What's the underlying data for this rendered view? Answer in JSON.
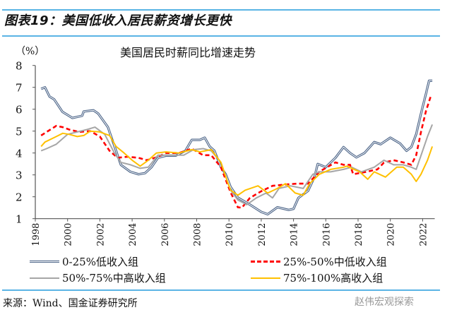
{
  "header": {
    "figure_title": "图表19：美国低收入居民薪资增长更快"
  },
  "footer": {
    "source": "来源：Wind、国金证券研究所",
    "watermark": "赵伟宏观探索"
  },
  "chart_data": {
    "type": "line",
    "title": "美国居民时薪同比增速走势",
    "ylabel": "（%）",
    "xlabel": "",
    "xlim": [
      1998,
      2022.75
    ],
    "ylim": [
      1,
      8
    ],
    "yticks": [
      "1",
      "2",
      "3",
      "4",
      "5",
      "6",
      "7",
      "8"
    ],
    "xticks": [
      "1998",
      "2000",
      "2002",
      "2004",
      "2006",
      "2008",
      "2010",
      "2012",
      "2014",
      "2016",
      "2018",
      "2020",
      "2022"
    ],
    "grid": false,
    "legend_placement": "bottom",
    "series": [
      {
        "name": "0-25%低收入组",
        "color": "#4a6387",
        "style": "double",
        "x": [
          1998.36,
          1998.6,
          1998.88,
          1999.17,
          1999.68,
          2000.3,
          2000.9,
          2001.0,
          2001.6,
          2001.9,
          2002.5,
          2002.9,
          2003.3,
          2003.9,
          2004.4,
          2004.8,
          2005.2,
          2005.6,
          2006.1,
          2006.7,
          2007.3,
          2007.7,
          2008.2,
          2008.5,
          2008.8,
          2009.1,
          2009.5,
          2009.8,
          2010.1,
          2010.55,
          2011.3,
          2012.0,
          2012.4,
          2013.0,
          2013.7,
          2014.0,
          2014.3,
          2014.9,
          2015.3,
          2015.5,
          2016.0,
          2016.6,
          2017.1,
          2017.5,
          2017.9,
          2018.4,
          2019.0,
          2019.4,
          2020.0,
          2020.6,
          2021.0,
          2021.3,
          2021.6,
          2021.9,
          2022.2,
          2022.4,
          2022.6
        ],
        "y": [
          6.93,
          7.0,
          6.58,
          6.45,
          5.88,
          5.6,
          5.7,
          5.9,
          5.95,
          5.8,
          5.18,
          4.32,
          3.46,
          3.14,
          3.03,
          3.08,
          3.35,
          3.78,
          3.88,
          3.88,
          4.1,
          4.6,
          4.6,
          4.7,
          4.3,
          4.1,
          3.35,
          3.03,
          2.45,
          1.96,
          1.64,
          1.31,
          1.2,
          1.52,
          1.4,
          1.45,
          1.95,
          2.27,
          2.9,
          3.5,
          3.35,
          3.78,
          4.27,
          4.0,
          3.8,
          4.0,
          4.5,
          4.4,
          4.7,
          4.44,
          4.1,
          4.27,
          4.86,
          5.8,
          6.69,
          7.3,
          7.3
        ]
      },
      {
        "name": "25%-50%中低收入组",
        "color": "#ff0000",
        "style": "dashed",
        "x": [
          1998.36,
          1998.7,
          1999.3,
          1999.7,
          2000.1,
          2000.7,
          2001.4,
          2002.0,
          2002.6,
          2003.1,
          2003.7,
          2004.4,
          2004.9,
          2005.5,
          2006.1,
          2006.9,
          2007.7,
          2008.4,
          2008.9,
          2009.5,
          2010.1,
          2010.55,
          2010.8,
          2011.3,
          2012.0,
          2012.7,
          2013.4,
          2014.2,
          2014.9,
          2015.6,
          2016.6,
          2017.1,
          2017.5,
          2017.7,
          2018.5,
          2019.2,
          2019.6,
          2020.2,
          2020.8,
          2021.3,
          2021.6,
          2021.9,
          2022.2,
          2022.5
        ],
        "y": [
          4.8,
          4.96,
          5.24,
          5.18,
          5.07,
          4.96,
          5.0,
          4.75,
          4.1,
          3.78,
          3.83,
          3.78,
          3.67,
          3.8,
          4.0,
          4.0,
          4.2,
          3.9,
          3.9,
          3.35,
          2.2,
          1.52,
          1.5,
          1.95,
          2.25,
          2.5,
          2.55,
          2.6,
          2.6,
          3.15,
          3.57,
          3.46,
          3.46,
          3.03,
          3.14,
          3.25,
          3.56,
          3.67,
          3.57,
          3.46,
          3.9,
          4.96,
          5.9,
          6.58
        ]
      },
      {
        "name": "50%-75%中高收入组",
        "color": "#a6a6a6",
        "style": "solid",
        "x": [
          1998.36,
          1998.7,
          1999.3,
          2000.0,
          2000.6,
          2001.2,
          2001.7,
          2002.3,
          2002.9,
          2003.3,
          2003.9,
          2004.5,
          2005.0,
          2005.6,
          2006.3,
          2007.2,
          2007.8,
          2008.4,
          2008.9,
          2009.5,
          2010.1,
          2010.55,
          2011.1,
          2011.7,
          2012.3,
          2012.7,
          2013.1,
          2013.8,
          2014.6,
          2015.2,
          2015.6,
          2016.3,
          2017.1,
          2017.6,
          2018.2,
          2019.0,
          2019.6,
          2020.2,
          2020.8,
          2021.3,
          2021.6,
          2022.0,
          2022.3,
          2022.6
        ],
        "y": [
          4.1,
          4.2,
          4.4,
          4.85,
          4.96,
          5.07,
          5.18,
          4.85,
          4.0,
          3.57,
          3.46,
          3.3,
          3.35,
          3.9,
          3.9,
          3.9,
          4.15,
          4.2,
          4.1,
          3.57,
          2.3,
          1.85,
          1.64,
          1.95,
          2.17,
          1.95,
          2.38,
          2.5,
          2.38,
          3.03,
          3.14,
          3.14,
          3.25,
          3.35,
          3.14,
          3.35,
          3.67,
          3.46,
          3.46,
          3.35,
          3.25,
          4.1,
          4.75,
          5.3
        ]
      },
      {
        "name": "75%-100%高收入组",
        "color": "#ffc000",
        "style": "solid",
        "x": [
          1998.36,
          1998.6,
          1999.3,
          1999.7,
          2000.1,
          2000.6,
          2001.0,
          2001.4,
          2002.0,
          2002.6,
          2003.0,
          2003.5,
          2004.0,
          2004.5,
          2005.0,
          2005.5,
          2006.1,
          2006.9,
          2007.7,
          2008.2,
          2008.9,
          2009.5,
          2009.9,
          2010.1,
          2010.55,
          2011.0,
          2011.8,
          2012.4,
          2013.0,
          2013.5,
          2014.1,
          2014.6,
          2015.0,
          2015.6,
          2016.3,
          2017.1,
          2017.3,
          2018.1,
          2018.6,
          2019.0,
          2019.7,
          2020.4,
          2020.8,
          2021.3,
          2021.6,
          2021.9,
          2022.3,
          2022.6
        ],
        "y": [
          4.3,
          4.5,
          4.75,
          4.9,
          4.85,
          4.75,
          4.8,
          5.0,
          4.96,
          4.8,
          4.3,
          4.0,
          3.67,
          3.4,
          3.67,
          4.0,
          4.05,
          4.0,
          4.15,
          4.05,
          4.15,
          3.57,
          2.7,
          2.3,
          2.07,
          2.3,
          2.5,
          2.17,
          2.38,
          2.6,
          2.17,
          2.07,
          2.6,
          3.03,
          3.25,
          3.35,
          3.4,
          3.14,
          2.8,
          3.14,
          2.9,
          3.35,
          3.35,
          3.03,
          2.7,
          3.03,
          3.67,
          4.3
        ]
      }
    ]
  }
}
